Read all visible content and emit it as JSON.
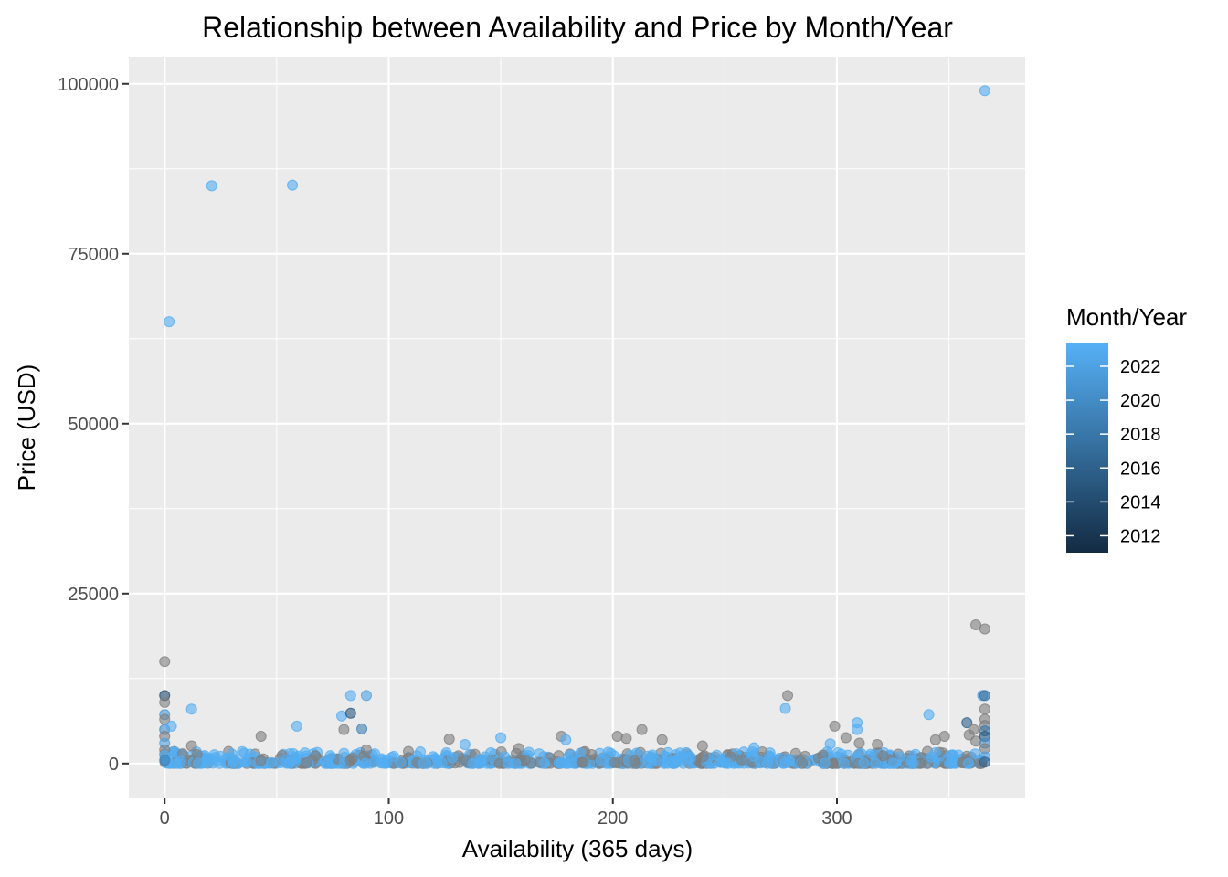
{
  "chart_data": {
    "type": "scatter",
    "title": "Relationship between Availability and Price by Month/Year",
    "xlabel": "Availability (365 days)",
    "ylabel": "Price (USD)",
    "xlim": [
      -16,
      384
    ],
    "ylim": [
      -5000,
      104000
    ],
    "x_ticks": [
      0,
      100,
      200,
      300
    ],
    "y_ticks": [
      0,
      25000,
      50000,
      75000,
      100000
    ],
    "grid": true,
    "panel_background": "#ebebeb",
    "legend": {
      "title": "Month/Year",
      "position": "right",
      "type": "colorbar",
      "low_color": "#132b43",
      "high_color": "#56b1f7",
      "range": [
        2011,
        2023.4
      ],
      "ticks": [
        2012,
        2014,
        2016,
        2018,
        2020,
        2022
      ]
    },
    "na_color": "#7f7f7f",
    "point_alpha": 0.6,
    "points": [
      {
        "x": 366,
        "y": 99000,
        "c": 2023
      },
      {
        "x": 21,
        "y": 85000,
        "c": 2023
      },
      {
        "x": 57,
        "y": 85100,
        "c": 2023
      },
      {
        "x": 2,
        "y": 65000,
        "c": 2023
      },
      {
        "x": 362,
        "y": 20400,
        "c": null
      },
      {
        "x": 366,
        "y": 19800,
        "c": null
      },
      {
        "x": 0,
        "y": 15000,
        "c": null
      },
      {
        "x": 0,
        "y": 10000,
        "c": 2014
      },
      {
        "x": 0,
        "y": 9000,
        "c": null
      },
      {
        "x": 0,
        "y": 7200,
        "c": 2021
      },
      {
        "x": 0,
        "y": 6500,
        "c": null
      },
      {
        "x": 0,
        "y": 5000,
        "c": 2020
      },
      {
        "x": 0,
        "y": 4000,
        "c": null
      },
      {
        "x": 0,
        "y": 3000,
        "c": 2022
      },
      {
        "x": 0,
        "y": 2000,
        "c": null
      },
      {
        "x": 0,
        "y": 1200,
        "c": 2023
      },
      {
        "x": 0,
        "y": 500,
        "c": 2019
      },
      {
        "x": 3,
        "y": 5500,
        "c": 2023
      },
      {
        "x": 12,
        "y": 8000,
        "c": 2023
      },
      {
        "x": 12,
        "y": 2600,
        "c": null
      },
      {
        "x": 43,
        "y": 4000,
        "c": null
      },
      {
        "x": 59,
        "y": 5500,
        "c": 2023
      },
      {
        "x": 79,
        "y": 7000,
        "c": 2023
      },
      {
        "x": 80,
        "y": 5000,
        "c": null
      },
      {
        "x": 83,
        "y": 10000,
        "c": 2023
      },
      {
        "x": 83,
        "y": 7400,
        "c": 2015
      },
      {
        "x": 88,
        "y": 5100,
        "c": 2019
      },
      {
        "x": 90,
        "y": 10000,
        "c": 2022
      },
      {
        "x": 90,
        "y": 2000,
        "c": null
      },
      {
        "x": 127,
        "y": 3600,
        "c": null
      },
      {
        "x": 134,
        "y": 2800,
        "c": 2023
      },
      {
        "x": 150,
        "y": 3800,
        "c": 2023
      },
      {
        "x": 158,
        "y": 2200,
        "c": null
      },
      {
        "x": 177,
        "y": 4000,
        "c": null
      },
      {
        "x": 179,
        "y": 3500,
        "c": 2023
      },
      {
        "x": 202,
        "y": 4000,
        "c": null
      },
      {
        "x": 206,
        "y": 3700,
        "c": null
      },
      {
        "x": 213,
        "y": 5000,
        "c": null
      },
      {
        "x": 222,
        "y": 3500,
        "c": null
      },
      {
        "x": 240,
        "y": 2600,
        "c": null
      },
      {
        "x": 263,
        "y": 2300,
        "c": 2023
      },
      {
        "x": 277,
        "y": 8100,
        "c": 2023
      },
      {
        "x": 278,
        "y": 10000,
        "c": null
      },
      {
        "x": 297,
        "y": 2900,
        "c": 2023
      },
      {
        "x": 299,
        "y": 5500,
        "c": null
      },
      {
        "x": 304,
        "y": 3800,
        "c": null
      },
      {
        "x": 309,
        "y": 6000,
        "c": 2023
      },
      {
        "x": 309,
        "y": 5000,
        "c": 2023
      },
      {
        "x": 310,
        "y": 3000,
        "c": null
      },
      {
        "x": 318,
        "y": 2800,
        "c": null
      },
      {
        "x": 341,
        "y": 7200,
        "c": 2023
      },
      {
        "x": 344,
        "y": 3500,
        "c": null
      },
      {
        "x": 348,
        "y": 4000,
        "c": null
      },
      {
        "x": 358,
        "y": 6000,
        "c": 2016
      },
      {
        "x": 359,
        "y": 4200,
        "c": null
      },
      {
        "x": 361,
        "y": 5000,
        "c": null
      },
      {
        "x": 362,
        "y": 3300,
        "c": null
      },
      {
        "x": 365,
        "y": 10000,
        "c": 2022
      },
      {
        "x": 366,
        "y": 10000,
        "c": 2017
      },
      {
        "x": 366,
        "y": 8000,
        "c": null
      },
      {
        "x": 366,
        "y": 6500,
        "c": null
      },
      {
        "x": 366,
        "y": 5600,
        "c": null
      },
      {
        "x": 366,
        "y": 4800,
        "c": 2018
      },
      {
        "x": 366,
        "y": 4000,
        "c": 2015
      },
      {
        "x": 366,
        "y": 3000,
        "c": 2020
      },
      {
        "x": 366,
        "y": 2200,
        "c": null
      },
      {
        "x": 366,
        "y": 1000,
        "c": 2022
      },
      {
        "x": 366,
        "y": 200,
        "c": 2016
      }
    ]
  }
}
